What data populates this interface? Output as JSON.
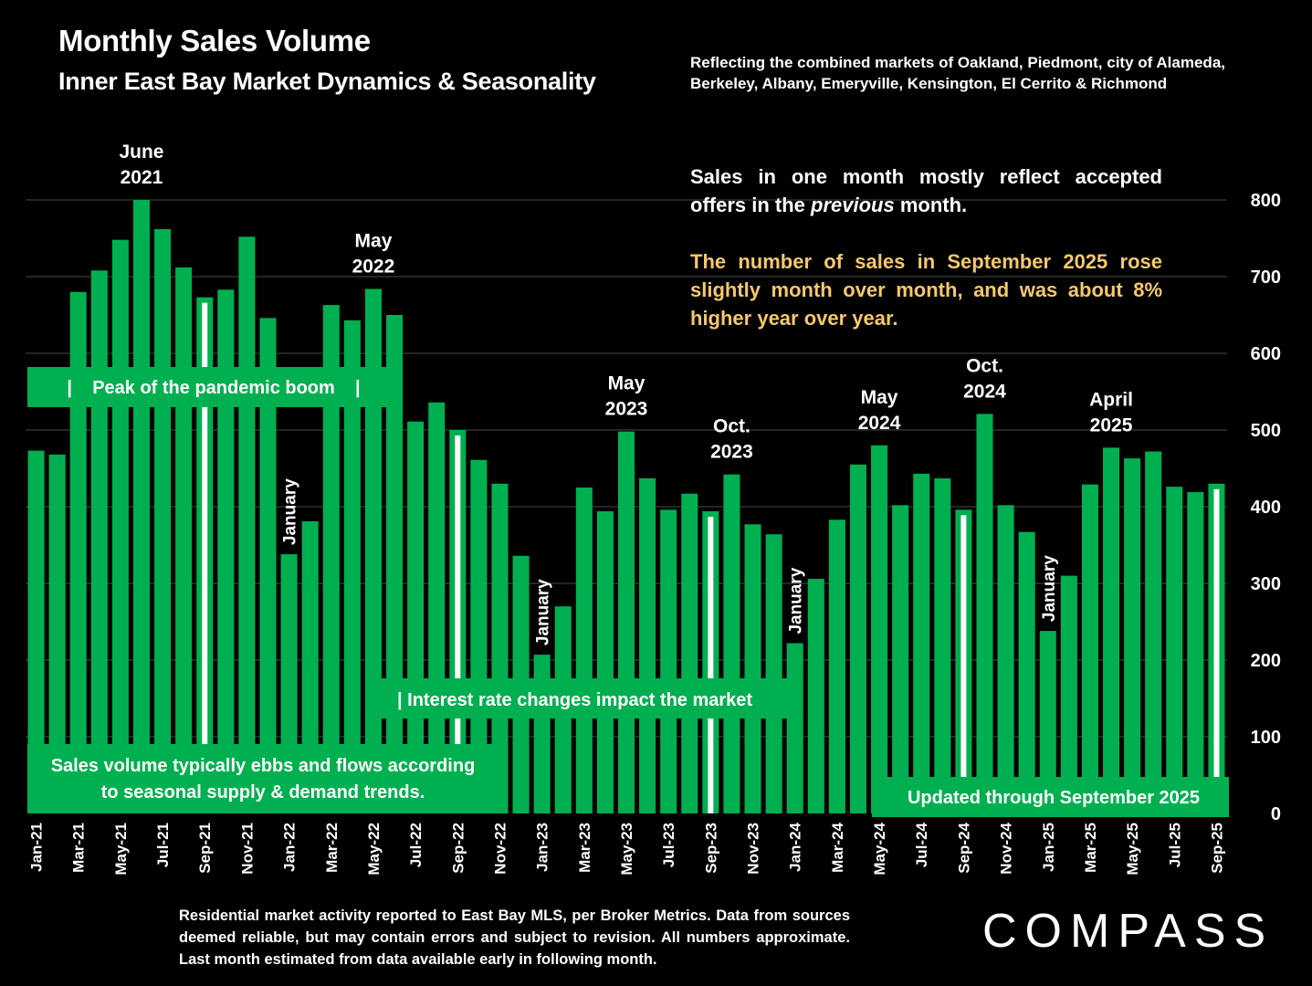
{
  "header": {
    "title": "Monthly Sales Volume",
    "subtitle": "Inner East Bay Market Dynamics & Seasonality",
    "note": "Reflecting the combined markets of Oakland, Piedmont, city of Alameda, Berkeley, Albany, Emeryville, Kensington, El Cerrito & Richmond"
  },
  "commentary": {
    "line1_pre": "Sales in one month mostly reflect accepted offers in the ",
    "line1_em": "previous",
    "line1_post": " month.",
    "highlight": "The number of sales in September 2025 rose slightly month over month, and was about 8% higher year over year."
  },
  "footer": {
    "disclaimer": "Residential market activity reported to East Bay MLS, per Broker Metrics. Data from sources deemed reliable, but may contain errors and subject to revision. All numbers approximate. Last month estimated from data available early in following month.",
    "logo": "COMPASS"
  },
  "colors": {
    "bar": "#00b050",
    "background": "#000000",
    "highlight_text": "#f5c86a",
    "marker": "#ffffff"
  },
  "chart_data": {
    "type": "bar",
    "categories": [
      "Jan-21",
      "Feb-21",
      "Mar-21",
      "Apr-21",
      "May-21",
      "Jun-21",
      "Jul-21",
      "Aug-21",
      "Sep-21",
      "Oct-21",
      "Nov-21",
      "Dec-21",
      "Jan-22",
      "Feb-22",
      "Mar-22",
      "Apr-22",
      "May-22",
      "Jun-22",
      "Jul-22",
      "Aug-22",
      "Sep-22",
      "Oct-22",
      "Nov-22",
      "Dec-22",
      "Jan-23",
      "Feb-23",
      "Mar-23",
      "Apr-23",
      "May-23",
      "Jun-23",
      "Jul-23",
      "Aug-23",
      "Sep-23",
      "Oct-23",
      "Nov-23",
      "Dec-23",
      "Jan-24",
      "Feb-24",
      "Mar-24",
      "Apr-24",
      "May-24",
      "Jun-24",
      "Jul-24",
      "Aug-24",
      "Sep-24",
      "Oct-24",
      "Nov-24",
      "Dec-24",
      "Jan-25",
      "Feb-25",
      "Mar-25",
      "Apr-25",
      "May-25",
      "Jun-25",
      "Jul-25",
      "Aug-25",
      "Sep-25"
    ],
    "x_tick_labels": [
      "Jan-21",
      "Mar-21",
      "May-21",
      "Jul-21",
      "Sep-21",
      "Nov-21",
      "Jan-22",
      "Mar-22",
      "May-22",
      "Jul-22",
      "Sep-22",
      "Nov-22",
      "Jan-23",
      "Mar-23",
      "May-23",
      "Jul-23",
      "Sep-23",
      "Nov-23",
      "Jan-24",
      "Mar-24",
      "May-24",
      "Jul-24",
      "Sep-24",
      "Nov-24",
      "Jan-25",
      "Mar-25",
      "May-25",
      "Jul-25",
      "Sep-25"
    ],
    "values": [
      473,
      468,
      680,
      708,
      748,
      800,
      762,
      712,
      673,
      683,
      752,
      646,
      338,
      381,
      663,
      643,
      684,
      650,
      511,
      536,
      500,
      461,
      430,
      336,
      207,
      270,
      425,
      394,
      498,
      437,
      396,
      417,
      394,
      442,
      377,
      364,
      222,
      306,
      383,
      455,
      480,
      402,
      443,
      437,
      396,
      521,
      402,
      367,
      238,
      310,
      429,
      477,
      463,
      472,
      426,
      419,
      430
    ],
    "yticks": [
      0,
      100,
      200,
      300,
      400,
      500,
      600,
      700,
      800
    ],
    "ylim": [
      0,
      800
    ],
    "y_axis_side": "right",
    "grid": true,
    "september_markers": [
      "Sep-21",
      "Sep-22",
      "Sep-23",
      "Sep-24",
      "Sep-25"
    ],
    "peak_labels": [
      {
        "category": "Jun-21",
        "text": "June",
        "text2": "2021"
      },
      {
        "category": "May-22",
        "text": "May",
        "text2": "2022"
      },
      {
        "category": "May-23",
        "text": "May",
        "text2": "2023"
      },
      {
        "category": "Oct-23",
        "text": "Oct.",
        "text2": "2023"
      },
      {
        "category": "May-24",
        "text": "May",
        "text2": "2024"
      },
      {
        "category": "Oct-24",
        "text": "Oct.",
        "text2": "2024"
      },
      {
        "category": "Apr-25",
        "text": "April",
        "text2": "2025"
      }
    ],
    "january_labels": [
      {
        "category": "Jan-22",
        "text": "January"
      },
      {
        "category": "Jan-23",
        "text": "January"
      },
      {
        "category": "Jan-24",
        "text": "January"
      },
      {
        "category": "Jan-25",
        "text": "January"
      }
    ],
    "annotations": {
      "pandemic": "|    Peak of the pandemic boom    |",
      "interest": "| Interest rate changes impact the market",
      "seasonal_line1": "Sales volume typically ebbs and flows according",
      "seasonal_line2": "to seasonal supply & demand trends.",
      "updated": "Updated through September 2025"
    }
  }
}
